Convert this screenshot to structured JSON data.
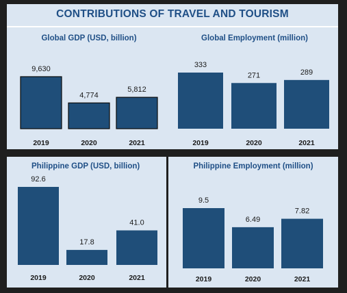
{
  "title": "CONTRIBUTIONS OF TRAVEL AND TOURISM",
  "chart_data": [
    {
      "type": "bar",
      "title": "Global GDP (USD, billion)",
      "categories": [
        "2019",
        "2020",
        "2021"
      ],
      "values": [
        9630,
        4774,
        5812
      ],
      "value_labels": [
        "9,630",
        "4,774",
        "5,812"
      ],
      "color": "#1f4e79"
    },
    {
      "type": "bar",
      "title": "Global Employment (million)",
      "categories": [
        "2019",
        "2020",
        "2021"
      ],
      "values": [
        333,
        271,
        289
      ],
      "value_labels": [
        "333",
        "271",
        "289"
      ],
      "color": "#1f4e79"
    },
    {
      "type": "bar",
      "title": "Philippine GDP (USD, billion)",
      "categories": [
        "2019",
        "2020",
        "2021"
      ],
      "values": [
        92.6,
        17.8,
        41.0
      ],
      "value_labels": [
        "92.6",
        "17.8",
        "41.0"
      ],
      "color": "#1f4e79"
    },
    {
      "type": "bar",
      "title": "Philippine Employment (million)",
      "categories": [
        "2019",
        "2020",
        "2021"
      ],
      "values": [
        9.5,
        6.49,
        7.82
      ],
      "value_labels": [
        "9.5",
        "6.49",
        "7.82"
      ],
      "color": "#1f4e79"
    }
  ]
}
